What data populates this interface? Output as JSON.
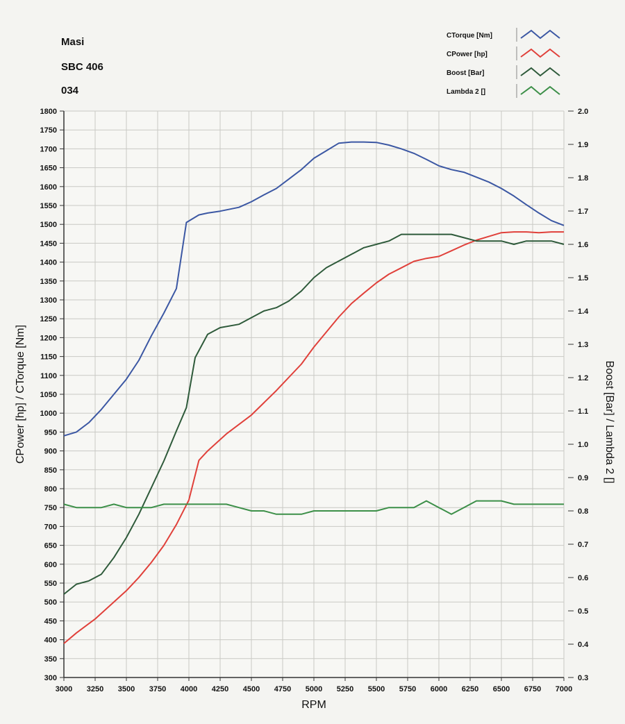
{
  "header": {
    "line1": "Masi",
    "line2": "SBC 406",
    "line3": "034"
  },
  "chart_data": {
    "type": "line",
    "xlabel": "RPM",
    "ylabel_left": "CPower [hp] / CTorque [Nm]",
    "ylabel_right": "Boost [Bar] / Lambda 2 []",
    "xlim": [
      3000,
      7000
    ],
    "ylim_left": [
      300,
      1800
    ],
    "ylim_right": [
      0.3,
      2.0
    ],
    "x_ticks": [
      3000,
      3250,
      3500,
      3750,
      4000,
      4250,
      4500,
      4750,
      5000,
      5250,
      5500,
      5750,
      6000,
      6250,
      6500,
      6750,
      7000
    ],
    "y_left_ticks": [
      300,
      350,
      400,
      450,
      500,
      550,
      600,
      650,
      700,
      750,
      800,
      850,
      900,
      950,
      1000,
      1050,
      1100,
      1150,
      1200,
      1250,
      1300,
      1350,
      1400,
      1450,
      1500,
      1550,
      1600,
      1650,
      1700,
      1750,
      1800
    ],
    "y_right_ticks": [
      "0.3",
      "0.4",
      "0.5",
      "0.6",
      "0.7",
      "0.8",
      "0.9",
      "1.0",
      "1.1",
      "1.2",
      "1.3",
      "1.4",
      "1.5",
      "1.6",
      "1.7",
      "1.8",
      "1.9",
      "2.0"
    ],
    "grid": true,
    "legend_position": "top-right",
    "series": [
      {
        "name": "CTorque [Nm]",
        "axis": "left",
        "color": "#3b57a3",
        "x": [
          3000,
          3100,
          3200,
          3300,
          3400,
          3500,
          3600,
          3700,
          3800,
          3900,
          3980,
          4080,
          4150,
          4250,
          4400,
          4500,
          4600,
          4700,
          4800,
          4900,
          5000,
          5100,
          5200,
          5300,
          5400,
          5500,
          5600,
          5700,
          5800,
          5900,
          6000,
          6100,
          6200,
          6300,
          6400,
          6500,
          6600,
          6700,
          6800,
          6900,
          7000
        ],
        "y": [
          940,
          950,
          975,
          1010,
          1050,
          1090,
          1140,
          1205,
          1265,
          1330,
          1505,
          1525,
          1530,
          1535,
          1545,
          1560,
          1578,
          1595,
          1620,
          1645,
          1675,
          1695,
          1715,
          1718,
          1718,
          1717,
          1710,
          1700,
          1688,
          1672,
          1655,
          1645,
          1638,
          1625,
          1612,
          1595,
          1575,
          1552,
          1530,
          1510,
          1497
        ]
      },
      {
        "name": "CPower [hp]",
        "axis": "left",
        "color": "#e0403a",
        "x": [
          3000,
          3100,
          3250,
          3400,
          3500,
          3600,
          3700,
          3800,
          3900,
          4000,
          4080,
          4150,
          4300,
          4500,
          4700,
          4900,
          5000,
          5100,
          5200,
          5300,
          5400,
          5500,
          5600,
          5700,
          5800,
          5900,
          6000,
          6100,
          6200,
          6300,
          6400,
          6500,
          6600,
          6700,
          6800,
          6900,
          7000
        ],
        "y": [
          390,
          418,
          455,
          500,
          530,
          565,
          605,
          650,
          705,
          770,
          875,
          900,
          945,
          995,
          1060,
          1130,
          1175,
          1215,
          1255,
          1290,
          1318,
          1345,
          1368,
          1385,
          1402,
          1410,
          1415,
          1430,
          1445,
          1458,
          1468,
          1478,
          1480,
          1480,
          1478,
          1480,
          1480
        ]
      },
      {
        "name": "Boost [Bar]",
        "axis": "right",
        "color": "#2e5a3a",
        "x": [
          3000,
          3100,
          3200,
          3300,
          3400,
          3500,
          3600,
          3700,
          3800,
          3900,
          3980,
          4050,
          4150,
          4250,
          4400,
          4500,
          4600,
          4700,
          4800,
          4900,
          5000,
          5100,
          5200,
          5300,
          5400,
          5500,
          5600,
          5700,
          5800,
          5900,
          6000,
          6100,
          6200,
          6300,
          6400,
          6500,
          6600,
          6700,
          6800,
          6900,
          7000
        ],
        "y": [
          0.55,
          0.58,
          0.59,
          0.61,
          0.66,
          0.72,
          0.79,
          0.87,
          0.95,
          1.04,
          1.11,
          1.26,
          1.33,
          1.35,
          1.36,
          1.38,
          1.4,
          1.41,
          1.43,
          1.46,
          1.5,
          1.53,
          1.55,
          1.57,
          1.59,
          1.6,
          1.61,
          1.63,
          1.63,
          1.63,
          1.63,
          1.63,
          1.62,
          1.61,
          1.61,
          1.61,
          1.6,
          1.61,
          1.61,
          1.61,
          1.6
        ]
      },
      {
        "name": "Lambda 2 []",
        "axis": "right",
        "color": "#3c8f48",
        "x": [
          3000,
          3100,
          3200,
          3300,
          3400,
          3500,
          3600,
          3700,
          3800,
          3900,
          4000,
          4100,
          4200,
          4300,
          4400,
          4500,
          4600,
          4700,
          4800,
          4900,
          5000,
          5100,
          5200,
          5300,
          5400,
          5500,
          5600,
          5700,
          5800,
          5900,
          6000,
          6100,
          6200,
          6300,
          6400,
          6500,
          6600,
          6700,
          6800,
          6900,
          7000
        ],
        "y": [
          0.82,
          0.81,
          0.81,
          0.81,
          0.82,
          0.81,
          0.81,
          0.81,
          0.82,
          0.82,
          0.82,
          0.82,
          0.82,
          0.82,
          0.81,
          0.8,
          0.8,
          0.79,
          0.79,
          0.79,
          0.8,
          0.8,
          0.8,
          0.8,
          0.8,
          0.8,
          0.81,
          0.81,
          0.81,
          0.83,
          0.81,
          0.79,
          0.81,
          0.83,
          0.83,
          0.83,
          0.82,
          0.82,
          0.82,
          0.82,
          0.82
        ]
      }
    ]
  }
}
